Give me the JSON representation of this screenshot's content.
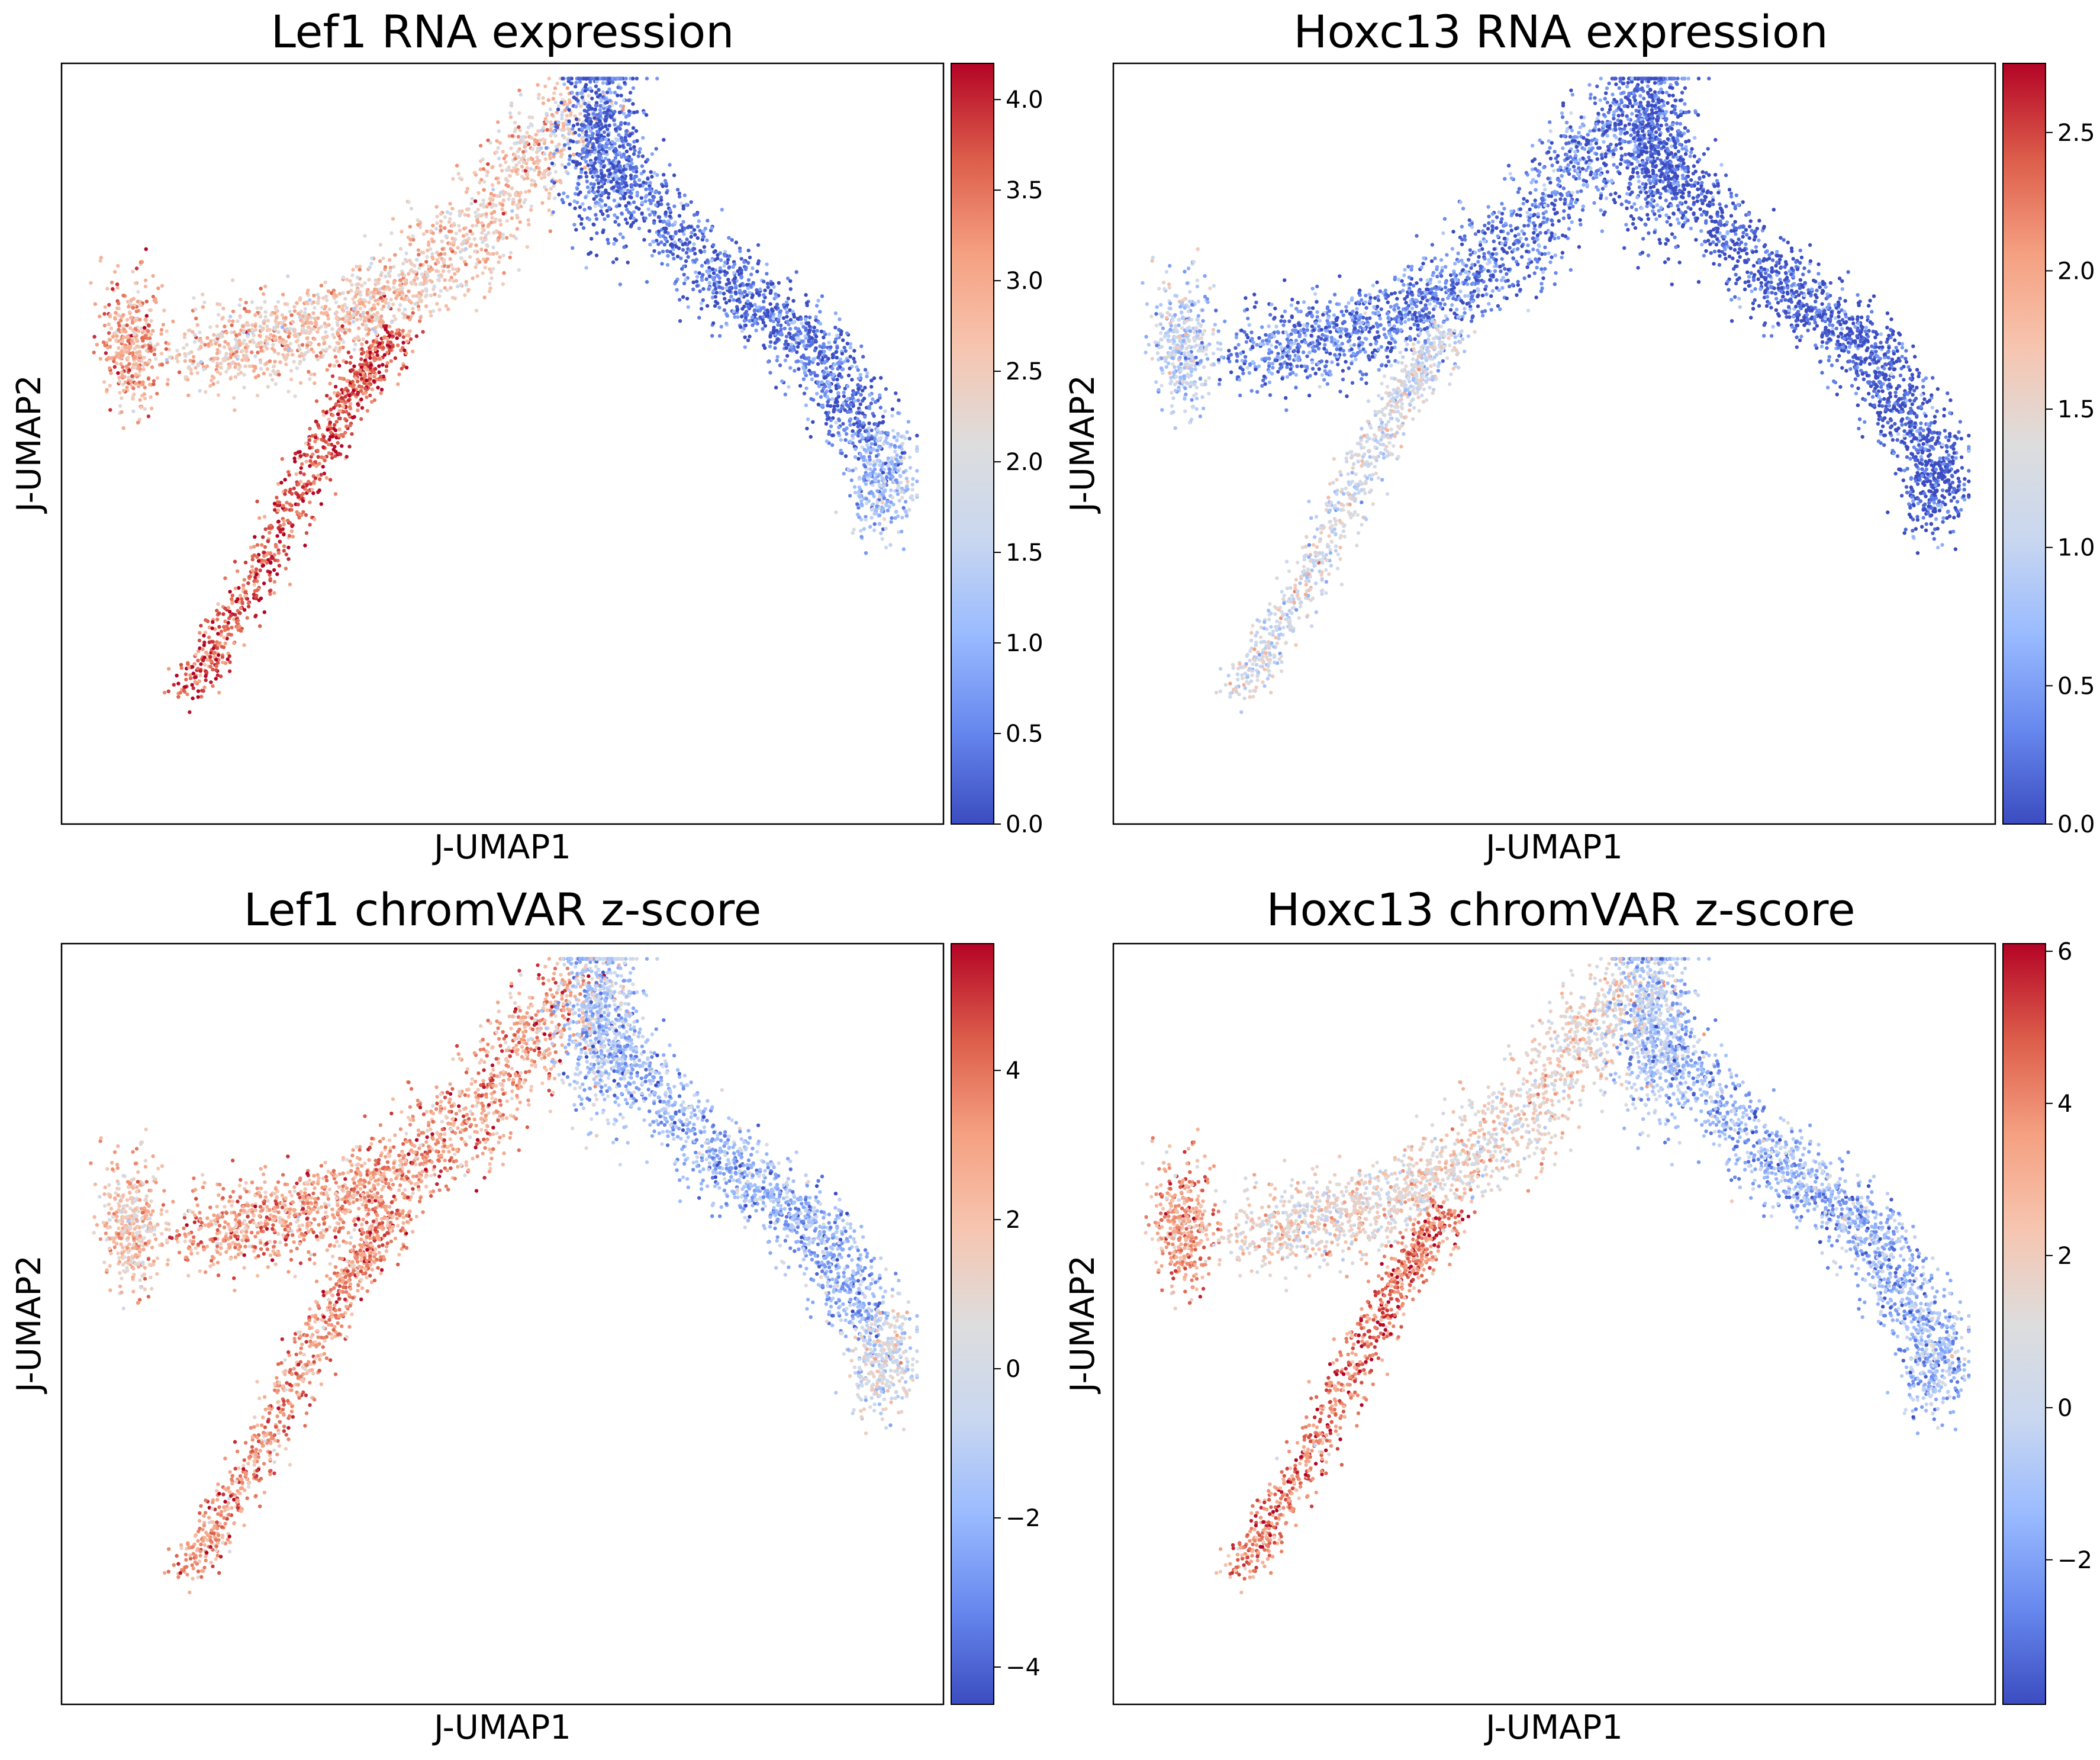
{
  "colormap": {
    "name": "coolwarm",
    "stops": [
      "#3b4cc0",
      "#6788ee",
      "#9abbff",
      "#c9d7f0",
      "#dddddd",
      "#f6c5b0",
      "#f5a081",
      "#dc5d4a",
      "#b40426"
    ]
  },
  "chart_data": [
    {
      "type": "scatter",
      "title": "Lef1 RNA expression",
      "xlabel": "J-UMAP1",
      "ylabel": "J-UMAP2",
      "colorbar": {
        "min": 0.0,
        "max": 4.2,
        "ticks": [
          "0.0",
          "0.5",
          "1.0",
          "1.5",
          "2.0",
          "2.5",
          "3.0",
          "3.5",
          "4.0"
        ],
        "tick_values": [
          0,
          0.5,
          1,
          1.5,
          2,
          2.5,
          3,
          3.5,
          4
        ]
      },
      "grid": false,
      "regions": [
        {
          "name": "left-blob",
          "value": 3.0
        },
        {
          "name": "upper-arm",
          "value": 2.6
        },
        {
          "name": "lower-arm",
          "value": 3.7
        },
        {
          "name": "peak",
          "value": 0.3
        },
        {
          "name": "right-arm",
          "value": 0.3
        },
        {
          "name": "right-end",
          "value": 1.2
        }
      ]
    },
    {
      "type": "scatter",
      "title": "Hoxc13 RNA expression",
      "xlabel": "J-UMAP1",
      "ylabel": "J-UMAP2",
      "colorbar": {
        "min": 0.0,
        "max": 2.75,
        "ticks": [
          "0.0",
          "0.5",
          "1.0",
          "1.5",
          "2.0",
          "2.5"
        ],
        "tick_values": [
          0,
          0.5,
          1,
          1.5,
          2,
          2.5
        ]
      },
      "grid": false,
      "regions": [
        {
          "name": "left-blob",
          "value": 1.0
        },
        {
          "name": "upper-arm",
          "value": 0.3
        },
        {
          "name": "lower-arm",
          "value": 1.2
        },
        {
          "name": "peak",
          "value": 0.1
        },
        {
          "name": "right-arm",
          "value": 0.05
        },
        {
          "name": "right-end",
          "value": 0.05
        }
      ]
    },
    {
      "type": "scatter",
      "title": "Lef1 chromVAR z-score",
      "xlabel": "J-UMAP1",
      "ylabel": "J-UMAP2",
      "colorbar": {
        "min": -4.5,
        "max": 5.7,
        "ticks": [
          "−4",
          "−2",
          "0",
          "2",
          "4"
        ],
        "tick_values": [
          -4,
          -2,
          0,
          2,
          4
        ]
      },
      "grid": false,
      "regions": [
        {
          "name": "left-blob",
          "value": 2.0
        },
        {
          "name": "upper-arm",
          "value": 3.0
        },
        {
          "name": "lower-arm",
          "value": 3.2
        },
        {
          "name": "peak",
          "value": -1.2
        },
        {
          "name": "right-arm",
          "value": -2.0
        },
        {
          "name": "right-end",
          "value": 0.0
        }
      ]
    },
    {
      "type": "scatter",
      "title": "Hoxc13 chromVAR z-score",
      "xlabel": "J-UMAP1",
      "ylabel": "J-UMAP2",
      "colorbar": {
        "min": -3.9,
        "max": 6.1,
        "ticks": [
          "−2",
          "0",
          "2",
          "4",
          "6"
        ],
        "tick_values": [
          -2,
          0,
          2,
          4,
          6
        ]
      },
      "grid": false,
      "regions": [
        {
          "name": "left-blob",
          "value": 3.5
        },
        {
          "name": "upper-arm",
          "value": 1.6
        },
        {
          "name": "lower-arm",
          "value": 4.2
        },
        {
          "name": "peak",
          "value": -0.8
        },
        {
          "name": "right-arm",
          "value": -1.5
        },
        {
          "name": "right-end",
          "value": -1.3
        }
      ]
    }
  ]
}
